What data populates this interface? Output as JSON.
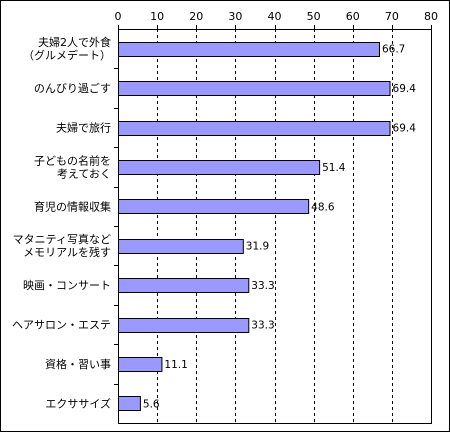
{
  "colors": {
    "bar_fill": "#9999ff",
    "bar_stroke": "#000000",
    "grid": "#000000",
    "axis": "#000000",
    "border": "#000000",
    "background": "#ffffff"
  },
  "chart_data": {
    "type": "bar",
    "orientation": "horizontal",
    "title": "",
    "xlabel": "",
    "ylabel": "",
    "xlim": [
      0,
      80
    ],
    "x_ticks": [
      0,
      10,
      20,
      30,
      40,
      50,
      60,
      70,
      80
    ],
    "x_axis_position": "top",
    "grid": "vertical-dashed",
    "legend": "none",
    "categories": [
      [
        "夫婦2人で外食",
        "（グルメデート）"
      ],
      [
        "のんびり過ごす"
      ],
      [
        "夫婦で旅行"
      ],
      [
        "子どもの名前を",
        "考えておく"
      ],
      [
        "育児の情報収集"
      ],
      [
        "マタニティ写真など",
        "メモリアルを残す"
      ],
      [
        "映画・コンサート"
      ],
      [
        "ヘアサロン・エステ"
      ],
      [
        "資格・習い事"
      ],
      [
        "エクササイズ"
      ]
    ],
    "values": [
      66.7,
      69.4,
      69.4,
      51.4,
      48.6,
      31.9,
      33.3,
      33.3,
      11.1,
      5.6
    ],
    "value_labels": [
      "66.7",
      "69.4",
      "69.4",
      "51.4",
      "48.6",
      "31.9",
      "33.3",
      "33.3",
      "11.1",
      "5.6"
    ]
  }
}
